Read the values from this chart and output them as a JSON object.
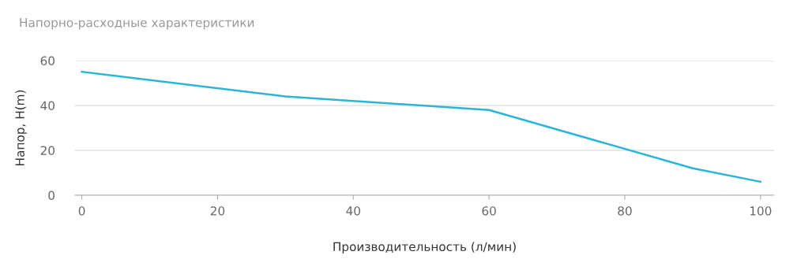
{
  "chart_data": {
    "type": "line",
    "title": "Напорно-расходные характеристики",
    "xlabel": "Производительность (л/мин)",
    "ylabel": "Напор, H(m)",
    "x": [
      0,
      30,
      60,
      90,
      100
    ],
    "series": [
      {
        "color": "#2bb5d9",
        "values": [
          55,
          44,
          38,
          12,
          6
        ]
      }
    ],
    "xlim": [
      -1,
      102
    ],
    "xticks": [
      0,
      20,
      40,
      60,
      80,
      100
    ],
    "ylim": [
      0,
      60
    ],
    "yticks": [
      0,
      20,
      40,
      60
    ],
    "grid": "y",
    "legend": false,
    "marker": "none",
    "line_style": "solid"
  }
}
